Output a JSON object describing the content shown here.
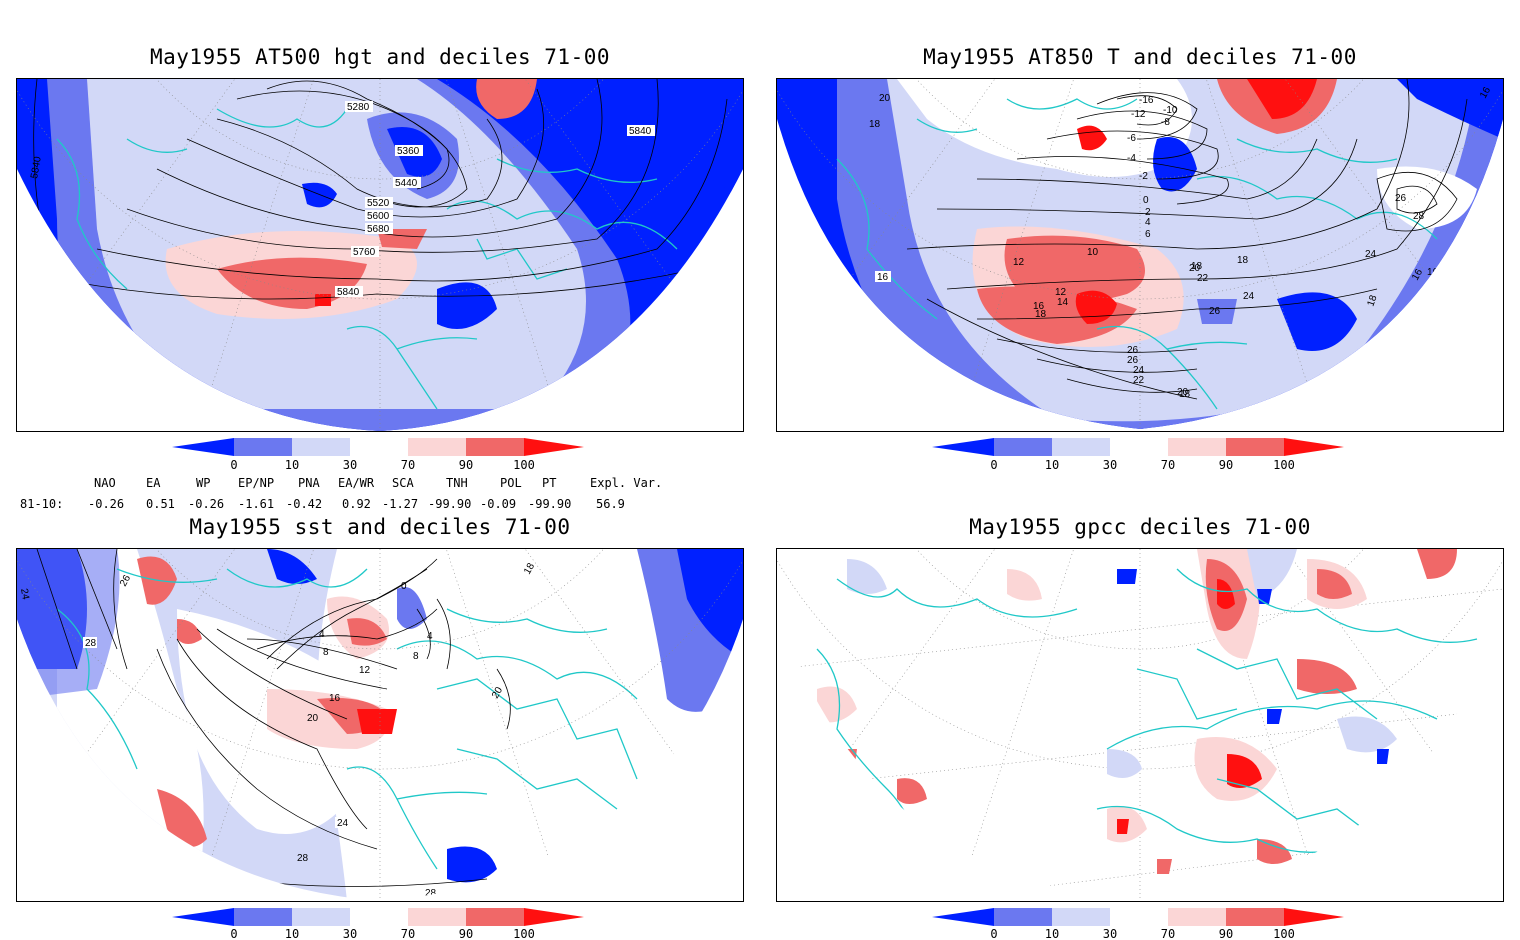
{
  "colors": {
    "blue_dark": "#0020ff",
    "blue_mid": "#6b78f0",
    "blue_light": "#d2d8f7",
    "red_light": "#fbd6d6",
    "red_mid": "#f06868",
    "red_dark": "#ff1010",
    "coast": "#20c8c8",
    "contour": "#000000"
  },
  "colorbar": {
    "ticks": [
      "0",
      "10",
      "30",
      "70",
      "90",
      "100"
    ]
  },
  "panels": [
    {
      "title": "May1955 AT500 hgt and deciles 71-00",
      "contour_labels": [
        "5280",
        "5360",
        "5440",
        "5520",
        "5600",
        "5680",
        "5760",
        "5840",
        "5840",
        "5840"
      ]
    },
    {
      "title": "May1955 AT850 T and deciles 71-00",
      "contour_labels": [
        "20",
        "18",
        "16",
        "16",
        "-16",
        "-12",
        "-10",
        "-8",
        "-6",
        "-4",
        "-2",
        "0",
        "2",
        "4",
        "6",
        "10",
        "12",
        "12",
        "14",
        "16",
        "18",
        "18",
        "18",
        "20",
        "22",
        "24",
        "26",
        "26",
        "24",
        "22",
        "20",
        "18",
        "26",
        "28",
        "24",
        "18",
        "16",
        "26",
        "16",
        "16"
      ]
    },
    {
      "title": "May1955 sst and deciles 71-00",
      "contour_labels": [
        "24",
        "26",
        "28",
        "0",
        "4",
        "8",
        "12",
        "16",
        "20",
        "24",
        "28",
        "28",
        "4",
        "8",
        "20",
        "18"
      ]
    },
    {
      "title": "May1955 gpcc deciles 71-00"
    }
  ],
  "indices": {
    "headers": [
      "NAO",
      "EA",
      "WP",
      "EP/NP",
      "PNA",
      "EA/WR",
      "SCA",
      "TNH",
      "POL",
      "PT",
      "Expl. Var."
    ],
    "row_label": "81-10:",
    "values": [
      "-0.26",
      "0.51",
      "-0.26",
      "-1.61",
      "-0.42",
      "0.92",
      "-1.27",
      "-99.90",
      "-0.09",
      "-99.90",
      "56.9"
    ]
  }
}
